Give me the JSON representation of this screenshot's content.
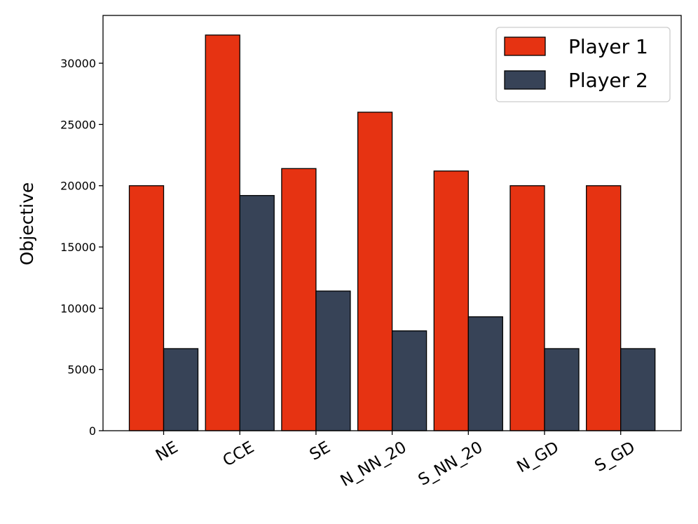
{
  "chart_data": {
    "type": "bar",
    "title": "",
    "xlabel": "",
    "ylabel": "Objective",
    "categories": [
      "NE",
      "CCE",
      "SE",
      "N_NN_20",
      "S_NN_20",
      "N_GD",
      "S_GD"
    ],
    "series": [
      {
        "name": "Player 1",
        "color": "#e63312",
        "values": [
          20000,
          32300,
          21400,
          26000,
          21200,
          20000,
          20000
        ]
      },
      {
        "name": "Player 2",
        "color": "#374357",
        "values": [
          6700,
          19200,
          11400,
          8150,
          9300,
          6700,
          6700
        ]
      }
    ],
    "ylim": [
      0,
      33900
    ],
    "yticks": [
      0,
      5000,
      10000,
      15000,
      20000,
      25000,
      30000
    ],
    "ytick_labels": [
      "0",
      "5000",
      "10000",
      "15000",
      "20000",
      "25000",
      "30000"
    ],
    "grid": false,
    "legend_position": "top-right",
    "xtick_rotation_deg": -30
  }
}
